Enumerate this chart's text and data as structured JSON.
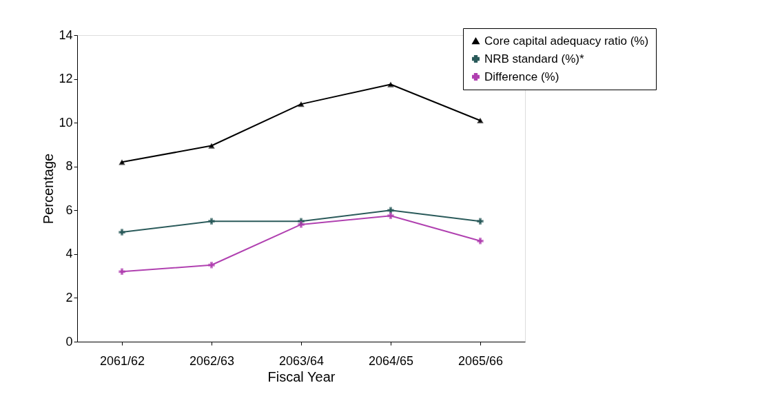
{
  "chart_data": {
    "type": "line",
    "xlabel": "Fiscal Year",
    "ylabel": "Percentage",
    "categories": [
      "2061/62",
      "2062/63",
      "2063/64",
      "2064/65",
      "2065/66"
    ],
    "series": [
      {
        "name": "Core capital adequacy ratio (%)",
        "color": "#000000",
        "marker": "triangle",
        "values": [
          8.2,
          8.95,
          10.85,
          11.75,
          10.1
        ]
      },
      {
        "name": "NRB standard (%)*",
        "color": "#2a5a5a",
        "marker": "cross",
        "values": [
          5,
          5.5,
          5.5,
          6,
          5.5
        ]
      },
      {
        "name": "Difference (%)",
        "color": "#b040b0",
        "marker": "cross",
        "values": [
          3.2,
          3.5,
          5.35,
          5.75,
          4.6
        ]
      }
    ],
    "ylim": [
      0,
      14
    ],
    "yticks": [
      0,
      2,
      4,
      6,
      8,
      10,
      12,
      14
    ],
    "grid": false,
    "legend": "top right",
    "line_style": "solid"
  }
}
